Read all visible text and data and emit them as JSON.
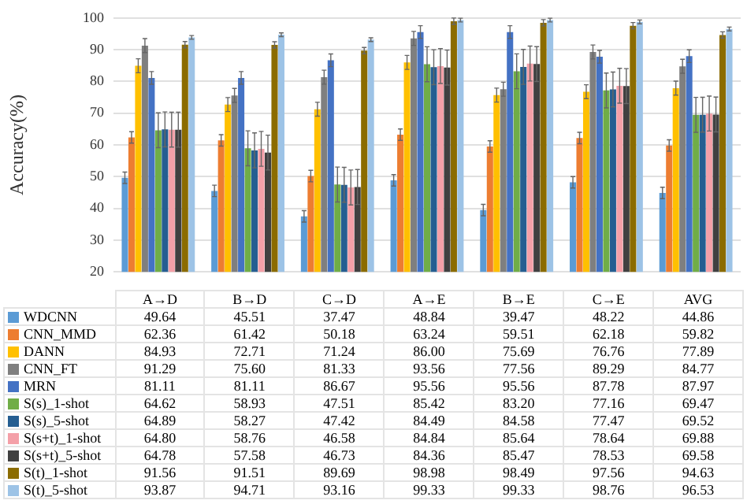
{
  "chart_data": {
    "type": "bar",
    "ylabel": "Accuracy(%)",
    "categories": [
      "A→D",
      "B→D",
      "C→D",
      "A→E",
      "B→E",
      "C→E",
      "AVG"
    ],
    "ylim": [
      20,
      100
    ],
    "yticks": [
      20,
      30,
      40,
      50,
      60,
      70,
      80,
      90,
      100
    ],
    "grid": "y",
    "legend": "bottom",
    "series": [
      {
        "name": "WDCNN",
        "color": "#5b9bd5",
        "values": [
          49.64,
          45.51,
          37.47,
          48.84,
          39.47,
          48.22,
          44.86
        ],
        "value_labels": [
          "49.64",
          "45.51",
          "37.47",
          "48.84",
          "39.47",
          "48.22",
          "44.86"
        ],
        "errors": [
          1.8,
          1.8,
          1.8,
          1.8,
          1.8,
          1.8,
          1.8
        ]
      },
      {
        "name": "CNN_MMD",
        "color": "#ed7d31",
        "values": [
          62.36,
          61.42,
          50.18,
          63.24,
          59.51,
          62.18,
          59.82
        ],
        "value_labels": [
          "62.36",
          "61.42",
          "50.18",
          "63.24",
          "59.51",
          "62.18",
          "59.82"
        ],
        "errors": [
          1.8,
          1.8,
          1.8,
          1.8,
          1.8,
          1.8,
          1.8
        ]
      },
      {
        "name": "DANN",
        "color": "#ffc000",
        "values": [
          84.93,
          72.71,
          71.24,
          86.0,
          75.69,
          76.76,
          77.89
        ],
        "value_labels": [
          "84.93",
          "72.71",
          "71.24",
          "86.00",
          "75.69",
          "76.76",
          "77.89"
        ],
        "errors": [
          2.2,
          2.2,
          2.2,
          2.2,
          2.2,
          2.2,
          2.2
        ]
      },
      {
        "name": "CNN_FT",
        "color": "#7f7f7f",
        "values": [
          91.29,
          75.6,
          81.33,
          93.56,
          77.56,
          89.29,
          84.77
        ],
        "value_labels": [
          "91.29",
          "75.60",
          "81.33",
          "93.56",
          "77.56",
          "89.29",
          "84.77"
        ],
        "errors": [
          2.2,
          2.2,
          2.2,
          2.2,
          2.2,
          2.2,
          2.2
        ]
      },
      {
        "name": "MRN",
        "color": "#4472c4",
        "values": [
          81.11,
          81.11,
          86.67,
          95.56,
          95.56,
          87.78,
          87.97
        ],
        "value_labels": [
          "81.11",
          "81.11",
          "86.67",
          "95.56",
          "95.56",
          "87.78",
          "87.97"
        ],
        "errors": [
          2,
          2,
          2,
          2,
          2,
          2,
          2
        ]
      },
      {
        "name": "S(s)_1-shot",
        "color": "#70ad47",
        "values": [
          64.62,
          58.93,
          47.51,
          85.42,
          83.2,
          77.16,
          69.47
        ],
        "value_labels": [
          "64.62",
          "58.93",
          "47.51",
          "85.42",
          "83.20",
          "77.16",
          "69.47"
        ],
        "errors": [
          5.5,
          5.5,
          5.5,
          5.5,
          5.5,
          5.5,
          5.5
        ]
      },
      {
        "name": "S(s)_5-shot",
        "color": "#255e91",
        "values": [
          64.89,
          58.27,
          47.42,
          84.49,
          84.58,
          77.47,
          69.52
        ],
        "value_labels": [
          "64.89",
          "58.27",
          "47.42",
          "84.49",
          "84.58",
          "77.47",
          "69.52"
        ],
        "errors": [
          5.5,
          5.5,
          5.5,
          5.5,
          5.5,
          5.5,
          5.5
        ]
      },
      {
        "name": "S(s+t)_1-shot",
        "color": "#f4a0a8",
        "values": [
          64.8,
          58.76,
          46.58,
          84.84,
          85.64,
          78.64,
          69.88
        ],
        "value_labels": [
          "64.80",
          "58.76",
          "46.58",
          "84.84",
          "85.64",
          "78.64",
          "69.88"
        ],
        "errors": [
          5.5,
          5.5,
          5.5,
          5.5,
          5.5,
          5.5,
          5.5
        ]
      },
      {
        "name": "S(s+t)_5-shot",
        "color": "#404040",
        "values": [
          64.78,
          57.58,
          46.73,
          84.36,
          85.47,
          78.53,
          69.58
        ],
        "value_labels": [
          "64.78",
          "57.58",
          "46.73",
          "84.36",
          "85.47",
          "78.53",
          "69.58"
        ],
        "errors": [
          5.5,
          5.5,
          5.5,
          5.5,
          5.5,
          5.5,
          5.5
        ]
      },
      {
        "name": "S(t)_1-shot",
        "color": "#8b6c00",
        "values": [
          91.56,
          91.51,
          89.69,
          98.98,
          98.49,
          97.56,
          94.63
        ],
        "value_labels": [
          "91.56",
          "91.51",
          "89.69",
          "98.98",
          "98.49",
          "97.56",
          "94.63"
        ],
        "errors": [
          1,
          1,
          1,
          1,
          1,
          1,
          1
        ]
      },
      {
        "name": "S(t)_5-shot",
        "color": "#9dc3e6",
        "values": [
          93.87,
          94.71,
          93.16,
          99.33,
          99.33,
          98.76,
          96.53
        ],
        "value_labels": [
          "93.87",
          "94.71",
          "93.16",
          "99.33",
          "99.33",
          "98.76",
          "96.53"
        ],
        "errors": [
          0.6,
          0.6,
          0.6,
          0.6,
          0.6,
          0.6,
          0.6
        ]
      }
    ]
  }
}
